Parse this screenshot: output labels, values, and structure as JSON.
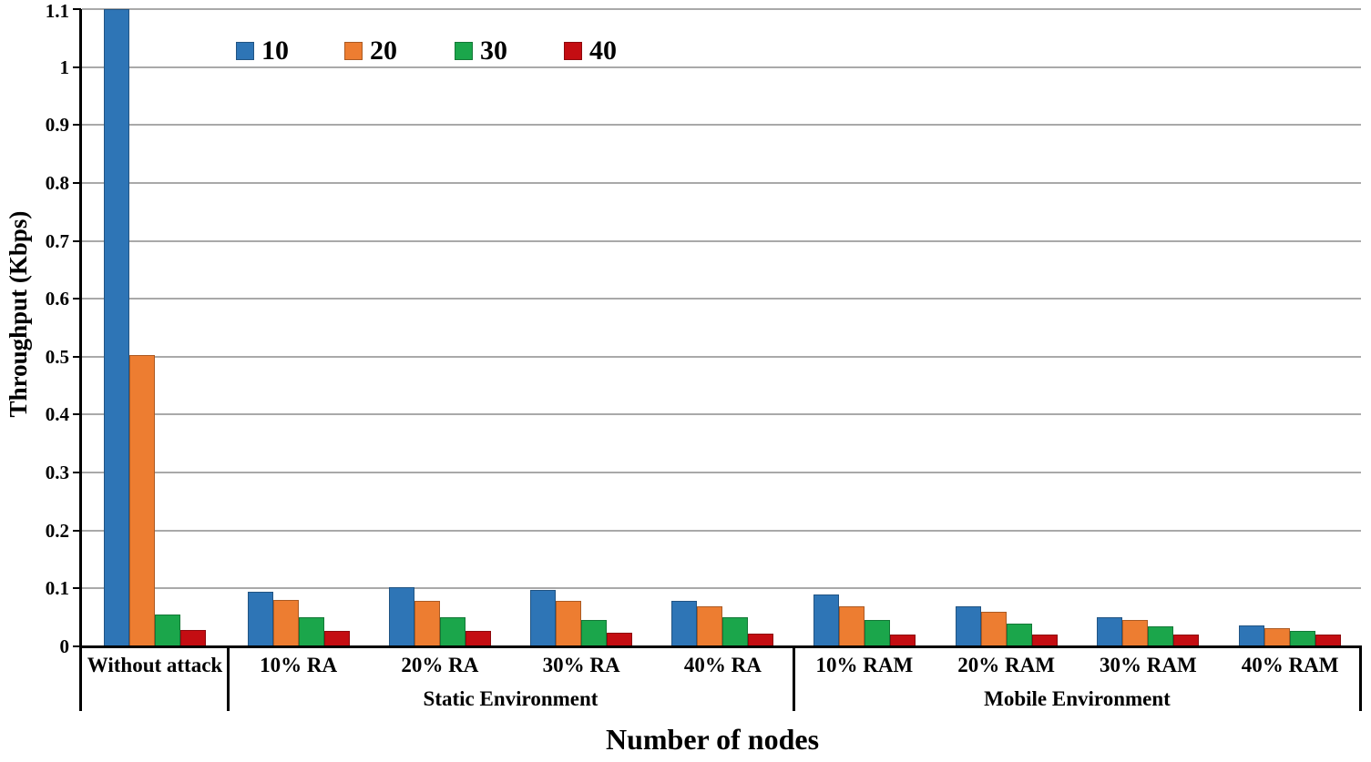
{
  "figure": {
    "background": "#ffffff",
    "text_color": "#000000",
    "axis_color": "#000000",
    "gridline_color": "#a9a9a9"
  },
  "chart_data": {
    "type": "bar",
    "title": "",
    "xlabel": "Number of nodes",
    "ylabel": "Throughput (Kbps)",
    "ylim": [
      0,
      1.1
    ],
    "yticks": [
      "0",
      "0.1",
      "0.2",
      "0.3",
      "0.4",
      "0.5",
      "0.6",
      "0.7",
      "0.8",
      "0.9",
      "1",
      "1.1"
    ],
    "grid": true,
    "legend_position": "top-inside-horizontal",
    "categories": [
      "Without attack",
      "10% RA",
      "20% RA",
      "30% RA",
      "40% RA",
      "10% RAM",
      "20% RAM",
      "30% RAM",
      "40% RAM"
    ],
    "group_labels": [
      {
        "label": "Static Environment",
        "first_category": "10% RA",
        "last_category": "40% RA"
      },
      {
        "label": "Mobile Environment",
        "first_category": "10% RAM",
        "last_category": "40% RAM"
      }
    ],
    "series": [
      {
        "name": "10",
        "color": "#2E75B6",
        "values": [
          1.1,
          0.094,
          0.102,
          0.098,
          0.079,
          0.089,
          0.069,
          0.05,
          0.036
        ]
      },
      {
        "name": "20",
        "color": "#ED7D31",
        "values": [
          0.503,
          0.08,
          0.079,
          0.079,
          0.069,
          0.069,
          0.06,
          0.045,
          0.031
        ]
      },
      {
        "name": "30",
        "color": "#1BA64B",
        "values": [
          0.055,
          0.051,
          0.05,
          0.045,
          0.05,
          0.045,
          0.039,
          0.035,
          0.026
        ]
      },
      {
        "name": "40",
        "color": "#C40D12",
        "values": [
          0.028,
          0.026,
          0.026,
          0.023,
          0.022,
          0.021,
          0.02,
          0.02,
          0.02
        ]
      }
    ]
  }
}
